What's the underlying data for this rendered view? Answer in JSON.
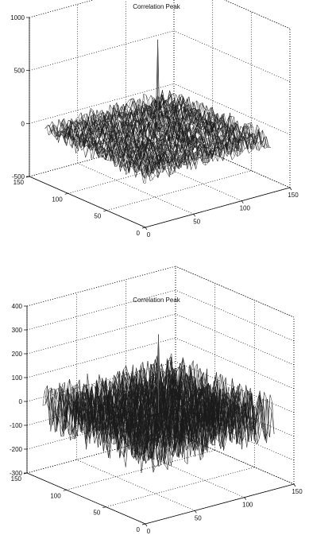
{
  "chart_data": [
    {
      "type": "surface3d",
      "title": "Correlation Peak",
      "xlabel": "",
      "ylabel": "",
      "zlabel": "",
      "xlim": [
        0,
        150
      ],
      "ylim": [
        0,
        150
      ],
      "zlim": [
        -500,
        1000
      ],
      "x_ticks": [
        0,
        50,
        100,
        150
      ],
      "y_ticks": [
        0,
        50,
        100,
        150
      ],
      "z_ticks": [
        -500,
        0,
        500,
        1000
      ],
      "x_tick_labels": [
        "0",
        "50",
        "100",
        "150"
      ],
      "y_tick_labels": [
        "0",
        "50",
        "100",
        "150"
      ],
      "z_tick_labels": [
        "-500",
        "0",
        "500",
        "1000"
      ],
      "grid": true,
      "surface": {
        "x_range": [
          0,
          130
        ],
        "y_range": [
          0,
          130
        ],
        "baseline": 0,
        "noise_amplitude": 90,
        "peak": {
          "x": 65,
          "y": 65,
          "z": 900
        }
      }
    },
    {
      "type": "surface3d",
      "title": "Correlation Peak",
      "xlabel": "",
      "ylabel": "",
      "zlabel": "",
      "xlim": [
        0,
        150
      ],
      "ylim": [
        0,
        150
      ],
      "zlim": [
        -300,
        400
      ],
      "x_ticks": [
        0,
        50,
        100,
        150
      ],
      "y_ticks": [
        0,
        50,
        100,
        150
      ],
      "z_ticks": [
        -300,
        -200,
        -100,
        0,
        100,
        200,
        300,
        400
      ],
      "x_tick_labels": [
        "0",
        "50",
        "100",
        "150"
      ],
      "y_tick_labels": [
        "0",
        "50",
        "100",
        "150"
      ],
      "z_tick_labels": [
        "-300",
        "-200",
        "-100",
        "0",
        "100",
        "200",
        "300",
        "400"
      ],
      "grid": true,
      "surface": {
        "x_range": [
          0,
          130
        ],
        "y_range": [
          0,
          130
        ],
        "baseline": 0,
        "noise_amplitude": 100,
        "peak": {
          "x": 65,
          "y": 65,
          "z": 330
        }
      }
    }
  ]
}
